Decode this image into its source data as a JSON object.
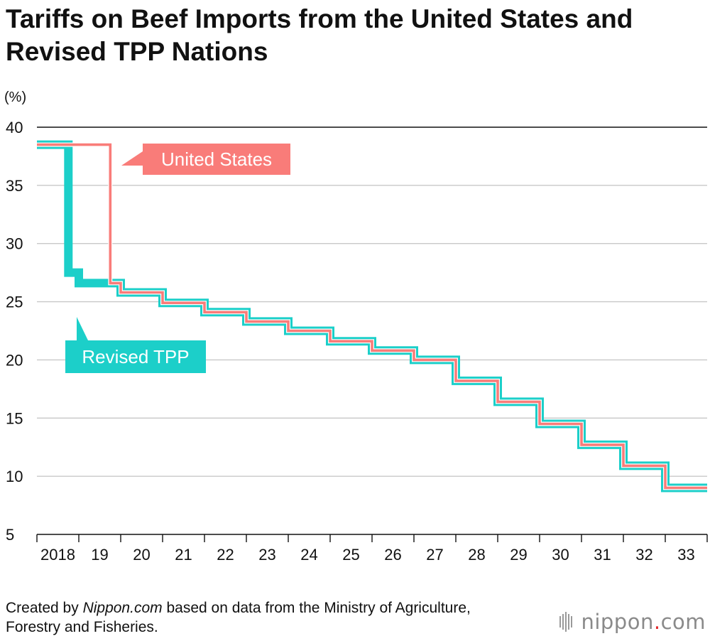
{
  "title": "Tariffs on Beef Imports from the United States and Revised TPP Nations",
  "chart_data": {
    "type": "line",
    "step": true,
    "title": "Tariffs on Beef Imports from the United States and Revised TPP Nations",
    "ylabel": "(%)",
    "xlabel": "",
    "ylim": [
      5,
      40
    ],
    "yticks": [
      5,
      10,
      15,
      20,
      25,
      30,
      35,
      40
    ],
    "categories": [
      "2018",
      "19",
      "20",
      "21",
      "22",
      "23",
      "24",
      "25",
      "26",
      "27",
      "28",
      "29",
      "30",
      "31",
      "32",
      "33"
    ],
    "xlim": [
      0,
      16
    ],
    "series": [
      {
        "name": "Revised TPP",
        "color": "#1ccfc9",
        "points": [
          [
            0,
            38.5
          ],
          [
            0.75,
            38.5
          ],
          [
            0.75,
            27.5
          ],
          [
            1,
            27.5
          ],
          [
            1,
            26.6
          ],
          [
            2,
            26.6
          ],
          [
            2,
            25.8
          ],
          [
            3,
            25.8
          ],
          [
            3,
            24.9
          ],
          [
            4,
            24.9
          ],
          [
            4,
            24.1
          ],
          [
            5,
            24.1
          ],
          [
            5,
            23.3
          ],
          [
            6,
            23.3
          ],
          [
            6,
            22.5
          ],
          [
            7,
            22.5
          ],
          [
            7,
            21.6
          ],
          [
            8,
            21.6
          ],
          [
            8,
            20.8
          ],
          [
            9,
            20.8
          ],
          [
            9,
            20
          ],
          [
            10,
            20
          ],
          [
            10,
            18.2
          ],
          [
            11,
            18.2
          ],
          [
            11,
            16.4
          ],
          [
            12,
            16.4
          ],
          [
            12,
            14.5
          ],
          [
            13,
            14.5
          ],
          [
            13,
            12.7
          ],
          [
            14,
            12.7
          ],
          [
            14,
            10.9
          ],
          [
            15,
            10.9
          ],
          [
            15,
            9
          ],
          [
            16,
            9
          ]
        ]
      },
      {
        "name": "United States",
        "color": "#f97c79",
        "points": [
          [
            0,
            38.5
          ],
          [
            1.75,
            38.5
          ],
          [
            1.75,
            26.6
          ],
          [
            2,
            26.6
          ],
          [
            2,
            25.8
          ],
          [
            3,
            25.8
          ],
          [
            3,
            24.9
          ],
          [
            4,
            24.9
          ],
          [
            4,
            24.1
          ],
          [
            5,
            24.1
          ],
          [
            5,
            23.3
          ],
          [
            6,
            23.3
          ],
          [
            6,
            22.5
          ],
          [
            7,
            22.5
          ],
          [
            7,
            21.6
          ],
          [
            8,
            21.6
          ],
          [
            8,
            20.8
          ],
          [
            9,
            20.8
          ],
          [
            9,
            20
          ],
          [
            10,
            20
          ],
          [
            10,
            18.2
          ],
          [
            11,
            18.2
          ],
          [
            11,
            16.4
          ],
          [
            12,
            16.4
          ],
          [
            12,
            14.5
          ],
          [
            13,
            14.5
          ],
          [
            13,
            12.7
          ],
          [
            14,
            12.7
          ],
          [
            14,
            10.9
          ],
          [
            15,
            10.9
          ],
          [
            15,
            9
          ],
          [
            16,
            9
          ]
        ]
      }
    ],
    "annotations": [
      {
        "label": "United States",
        "series": "United States"
      },
      {
        "label": "Revised TPP",
        "series": "Revised TPP"
      }
    ]
  },
  "footer": {
    "prefix": "Created by ",
    "source_site": "Nippon.com",
    "suffix": " based on data from the Ministry of Agriculture, Forestry and Fisheries."
  },
  "logo": {
    "word": "nippon",
    "dot": ".",
    "tld": "com"
  }
}
